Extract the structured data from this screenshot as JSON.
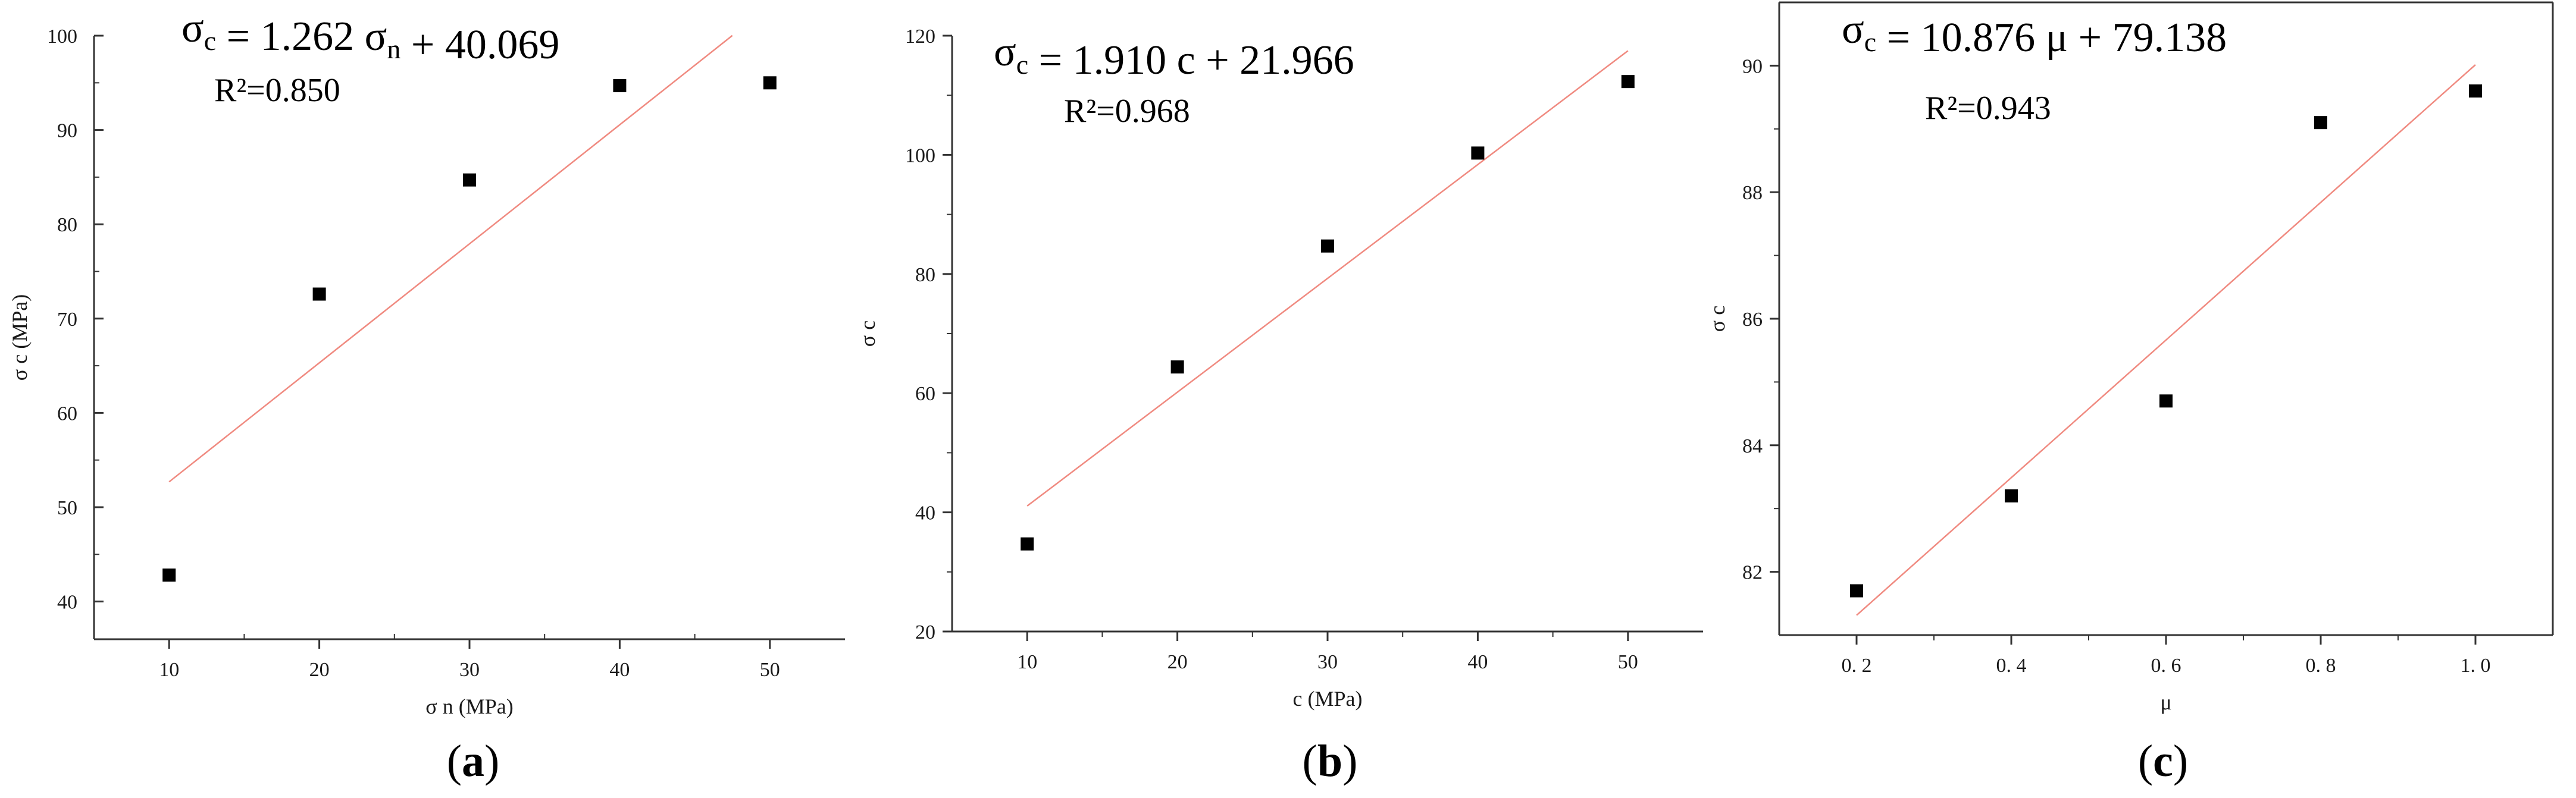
{
  "chart_data": [
    {
      "type": "scatter",
      "panel": "a",
      "caption_open": "(",
      "caption_letter": "a",
      "caption_close": ")",
      "equation": {
        "lhs": "σ",
        "lhs_sub": "c",
        "mid": " = 1.262  σ",
        "mid_sub": "n",
        "rhs": "  +  40.069"
      },
      "r2": "R²=0.850",
      "xlabel": "σ n  (MPa)",
      "ylabel": "σ c  (MPa)",
      "xlim": [
        5,
        55
      ],
      "ylim": [
        36,
        100
      ],
      "xticks": [
        10,
        20,
        30,
        40,
        50
      ],
      "xtick_labels": [
        "10",
        "20",
        "30",
        "40",
        "50"
      ],
      "yticks": [
        40,
        50,
        60,
        70,
        80,
        90,
        100
      ],
      "ytick_labels": [
        "40",
        "50",
        "60",
        "70",
        "80",
        "90",
        "100"
      ],
      "x": [
        10,
        20,
        30,
        40,
        50
      ],
      "y": [
        42.8,
        72.6,
        84.7,
        94.7,
        95.0
      ],
      "fit": {
        "slope": 1.262,
        "intercept": 40.069,
        "x_range": [
          10,
          47.5
        ]
      }
    },
    {
      "type": "scatter",
      "panel": "b",
      "caption_open": "(",
      "caption_letter": "b",
      "caption_close": ")",
      "equation": {
        "lhs": "σ",
        "lhs_sub": "c",
        "mid": " = 1.910 c  +  21.966",
        "mid_sub": "",
        "rhs": ""
      },
      "r2": "R²=0.968",
      "xlabel": "c   (MPa)",
      "ylabel": "σ c",
      "xlim": [
        5,
        55
      ],
      "ylim": [
        20,
        120
      ],
      "xticks": [
        10,
        20,
        30,
        40,
        50
      ],
      "xtick_labels": [
        "10",
        "20",
        "30",
        "40",
        "50"
      ],
      "yticks": [
        20,
        40,
        60,
        80,
        100,
        120
      ],
      "ytick_labels": [
        "20",
        "40",
        "60",
        "80",
        "100",
        "120"
      ],
      "x": [
        10,
        20,
        30,
        40,
        50
      ],
      "y": [
        34.7,
        64.4,
        84.7,
        100.3,
        112.3
      ],
      "fit": {
        "slope": 1.91,
        "intercept": 21.966,
        "x_range": [
          10,
          50
        ]
      }
    },
    {
      "type": "scatter",
      "panel": "c",
      "caption_open": "(",
      "caption_letter": "c",
      "caption_close": ")",
      "equation": {
        "lhs": "σ",
        "lhs_sub": "c",
        "mid": " = 10.876 μ  +  79.138",
        "mid_sub": "",
        "rhs": ""
      },
      "r2": "R²=0.943",
      "xlabel": "μ",
      "ylabel": "σ c",
      "xlim": [
        0.1,
        1.1
      ],
      "ylim": [
        81,
        91
      ],
      "xticks": [
        0.2,
        0.4,
        0.6,
        0.8,
        1.0
      ],
      "xtick_labels": [
        "0. 2",
        "0. 4",
        "0. 6",
        "0. 8",
        "1. 0"
      ],
      "yticks": [
        82,
        84,
        86,
        88,
        90
      ],
      "ytick_labels": [
        "82",
        "84",
        "86",
        "88",
        "90"
      ],
      "x": [
        0.2,
        0.4,
        0.6,
        0.8,
        1.0
      ],
      "y": [
        81.7,
        83.2,
        84.7,
        89.1,
        89.6
      ],
      "fit": {
        "slope": 10.876,
        "intercept": 79.138,
        "x_range": [
          0.2,
          1.0
        ]
      }
    }
  ],
  "colors": {
    "fit_line": "#f08a80",
    "marker": "#000000",
    "axis": "#333333"
  }
}
